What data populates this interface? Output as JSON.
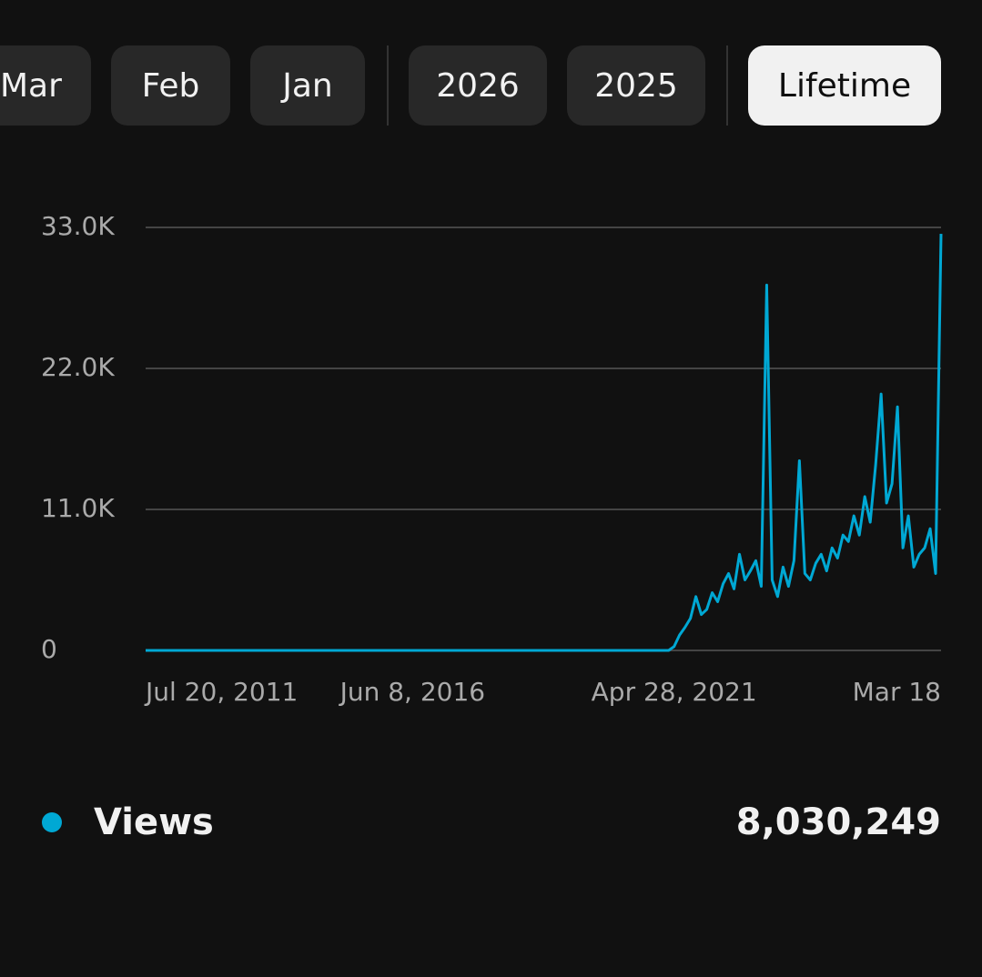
{
  "tabs": [
    "Mar",
    "Feb",
    "Jan",
    "2026",
    "2025",
    "Lifetime"
  ],
  "selected_tab": 5,
  "chart_data": {
    "type": "line",
    "categories": [
      "Jul 20, 2011",
      null,
      null,
      null,
      null,
      null,
      null,
      null,
      null,
      null,
      null,
      null,
      null,
      null,
      null,
      null,
      null,
      null,
      null,
      null,
      null,
      null,
      null,
      null,
      null,
      null,
      null,
      null,
      null,
      null,
      null,
      null,
      null,
      null,
      null,
      null,
      null,
      null,
      null,
      null,
      null,
      null,
      null,
      null,
      null,
      null,
      null,
      null,
      null,
      "Jun 8, 2016",
      null,
      null,
      null,
      null,
      null,
      null,
      null,
      null,
      null,
      null,
      null,
      null,
      null,
      null,
      null,
      null,
      null,
      null,
      null,
      null,
      null,
      null,
      null,
      null,
      null,
      null,
      null,
      null,
      null,
      null,
      null,
      null,
      null,
      null,
      null,
      null,
      null,
      null,
      null,
      null,
      null,
      null,
      null,
      null,
      null,
      null,
      null,
      "Apr 28, 2021",
      null,
      null,
      null,
      null,
      null,
      null,
      null,
      null,
      null,
      null,
      null,
      null,
      null,
      null,
      null,
      null,
      null,
      null,
      null,
      null,
      null,
      null,
      null,
      null,
      null,
      null,
      null,
      null,
      null,
      null,
      null,
      null,
      null,
      null,
      null,
      null,
      null,
      null,
      null,
      null,
      null,
      null,
      null,
      null,
      null,
      null,
      null,
      null,
      "Mar 18"
    ],
    "series": [
      {
        "name": "Views",
        "color": "#00a8d4",
        "values": [
          0,
          0,
          0,
          0,
          0,
          0,
          0,
          0,
          0,
          0,
          0,
          0,
          0,
          0,
          0,
          0,
          0,
          0,
          0,
          0,
          0,
          0,
          0,
          0,
          0,
          0,
          0,
          0,
          0,
          0,
          0,
          0,
          0,
          0,
          0,
          0,
          0,
          0,
          0,
          0,
          0,
          0,
          0,
          0,
          0,
          0,
          0,
          0,
          0,
          0,
          0,
          0,
          0,
          0,
          0,
          0,
          0,
          0,
          0,
          0,
          0,
          0,
          0,
          0,
          0,
          0,
          0,
          0,
          0,
          0,
          0,
          0,
          0,
          0,
          0,
          0,
          0,
          0,
          0,
          0,
          0,
          0,
          0,
          0,
          0,
          0,
          0,
          0,
          0,
          0,
          0,
          0,
          0,
          0,
          0,
          0,
          0,
          300,
          1200,
          1800,
          2500,
          4200,
          2800,
          3200,
          4500,
          3800,
          5200,
          6000,
          4800,
          7500,
          5500,
          6200,
          7000,
          5000,
          28500,
          5500,
          4200,
          6500,
          5000,
          7000,
          14800,
          6000,
          5500,
          6800,
          7500,
          6200,
          8000,
          7200,
          9000,
          8500,
          10500,
          9000,
          12000,
          10000,
          14500,
          20000,
          11500,
          13000,
          19000,
          8000,
          10500,
          6500,
          7500,
          8000,
          9500,
          6000,
          32500
        ]
      }
    ],
    "ylim": [
      0,
      33000
    ],
    "yticks": [
      0,
      {
        "value": 11000,
        "label": "11.0K"
      },
      {
        "value": 22000,
        "label": "22.0K"
      },
      {
        "value": 33000,
        "label": "33.0K"
      }
    ],
    "grid": true,
    "total": "8,030,249"
  }
}
